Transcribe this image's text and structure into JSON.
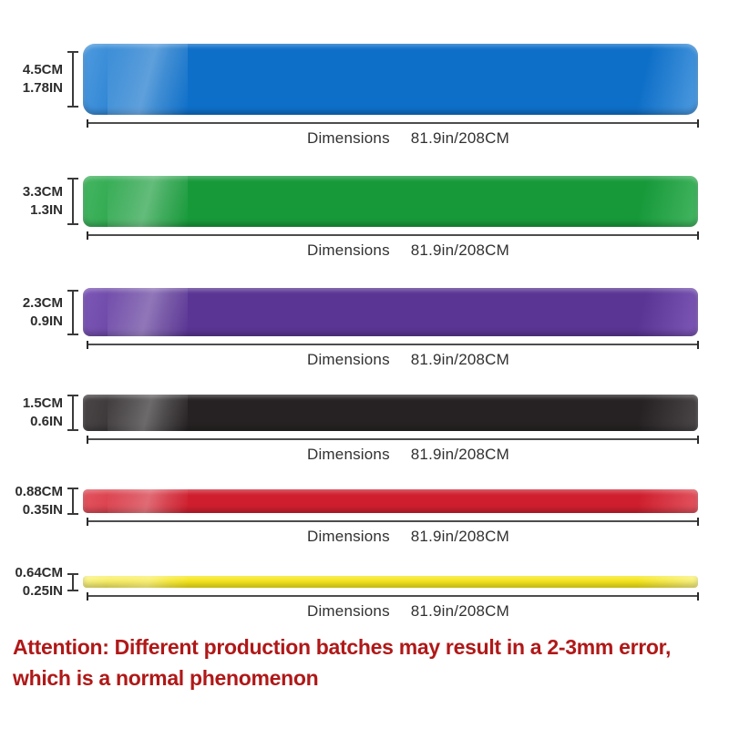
{
  "page": {
    "background": "#ffffff"
  },
  "bands": [
    {
      "name": "blue",
      "color": "#0e6fc8",
      "highlight": "#4f9bdf",
      "width_cm": "4.5CM",
      "width_in": "1.78IN",
      "dim_label": "Dimensions",
      "dim_value": "81.9in/208CM"
    },
    {
      "name": "green",
      "color": "#17993a",
      "highlight": "#45b662",
      "width_cm": "3.3CM",
      "width_in": "1.3IN",
      "dim_label": "Dimensions",
      "dim_value": "81.9in/208CM"
    },
    {
      "name": "purple",
      "color": "#5a3594",
      "highlight": "#7d58b6",
      "width_cm": "2.3CM",
      "width_in": "0.9IN",
      "dim_label": "Dimensions",
      "dim_value": "81.9in/208CM"
    },
    {
      "name": "black",
      "color": "#262223",
      "highlight": "#4b4748",
      "width_cm": "1.5CM",
      "width_in": "0.6IN",
      "dim_label": "Dimensions",
      "dim_value": "81.9in/208CM"
    },
    {
      "name": "red",
      "color": "#cf1f2e",
      "highlight": "#e25560",
      "width_cm": "0.88CM",
      "width_in": "0.35IN",
      "dim_label": "Dimensions",
      "dim_value": "81.9in/208CM"
    },
    {
      "name": "yellow",
      "color": "#f6e71c",
      "highlight": "#faf385",
      "width_cm": "0.64CM",
      "width_in": "0.25IN",
      "dim_label": "Dimensions",
      "dim_value": "81.9in/208CM"
    }
  ],
  "attention": {
    "color": "#b01818",
    "line1": "Attention: Different production batches may result in a 2-3mm error,",
    "line2": "which is a normal phenomenon"
  }
}
